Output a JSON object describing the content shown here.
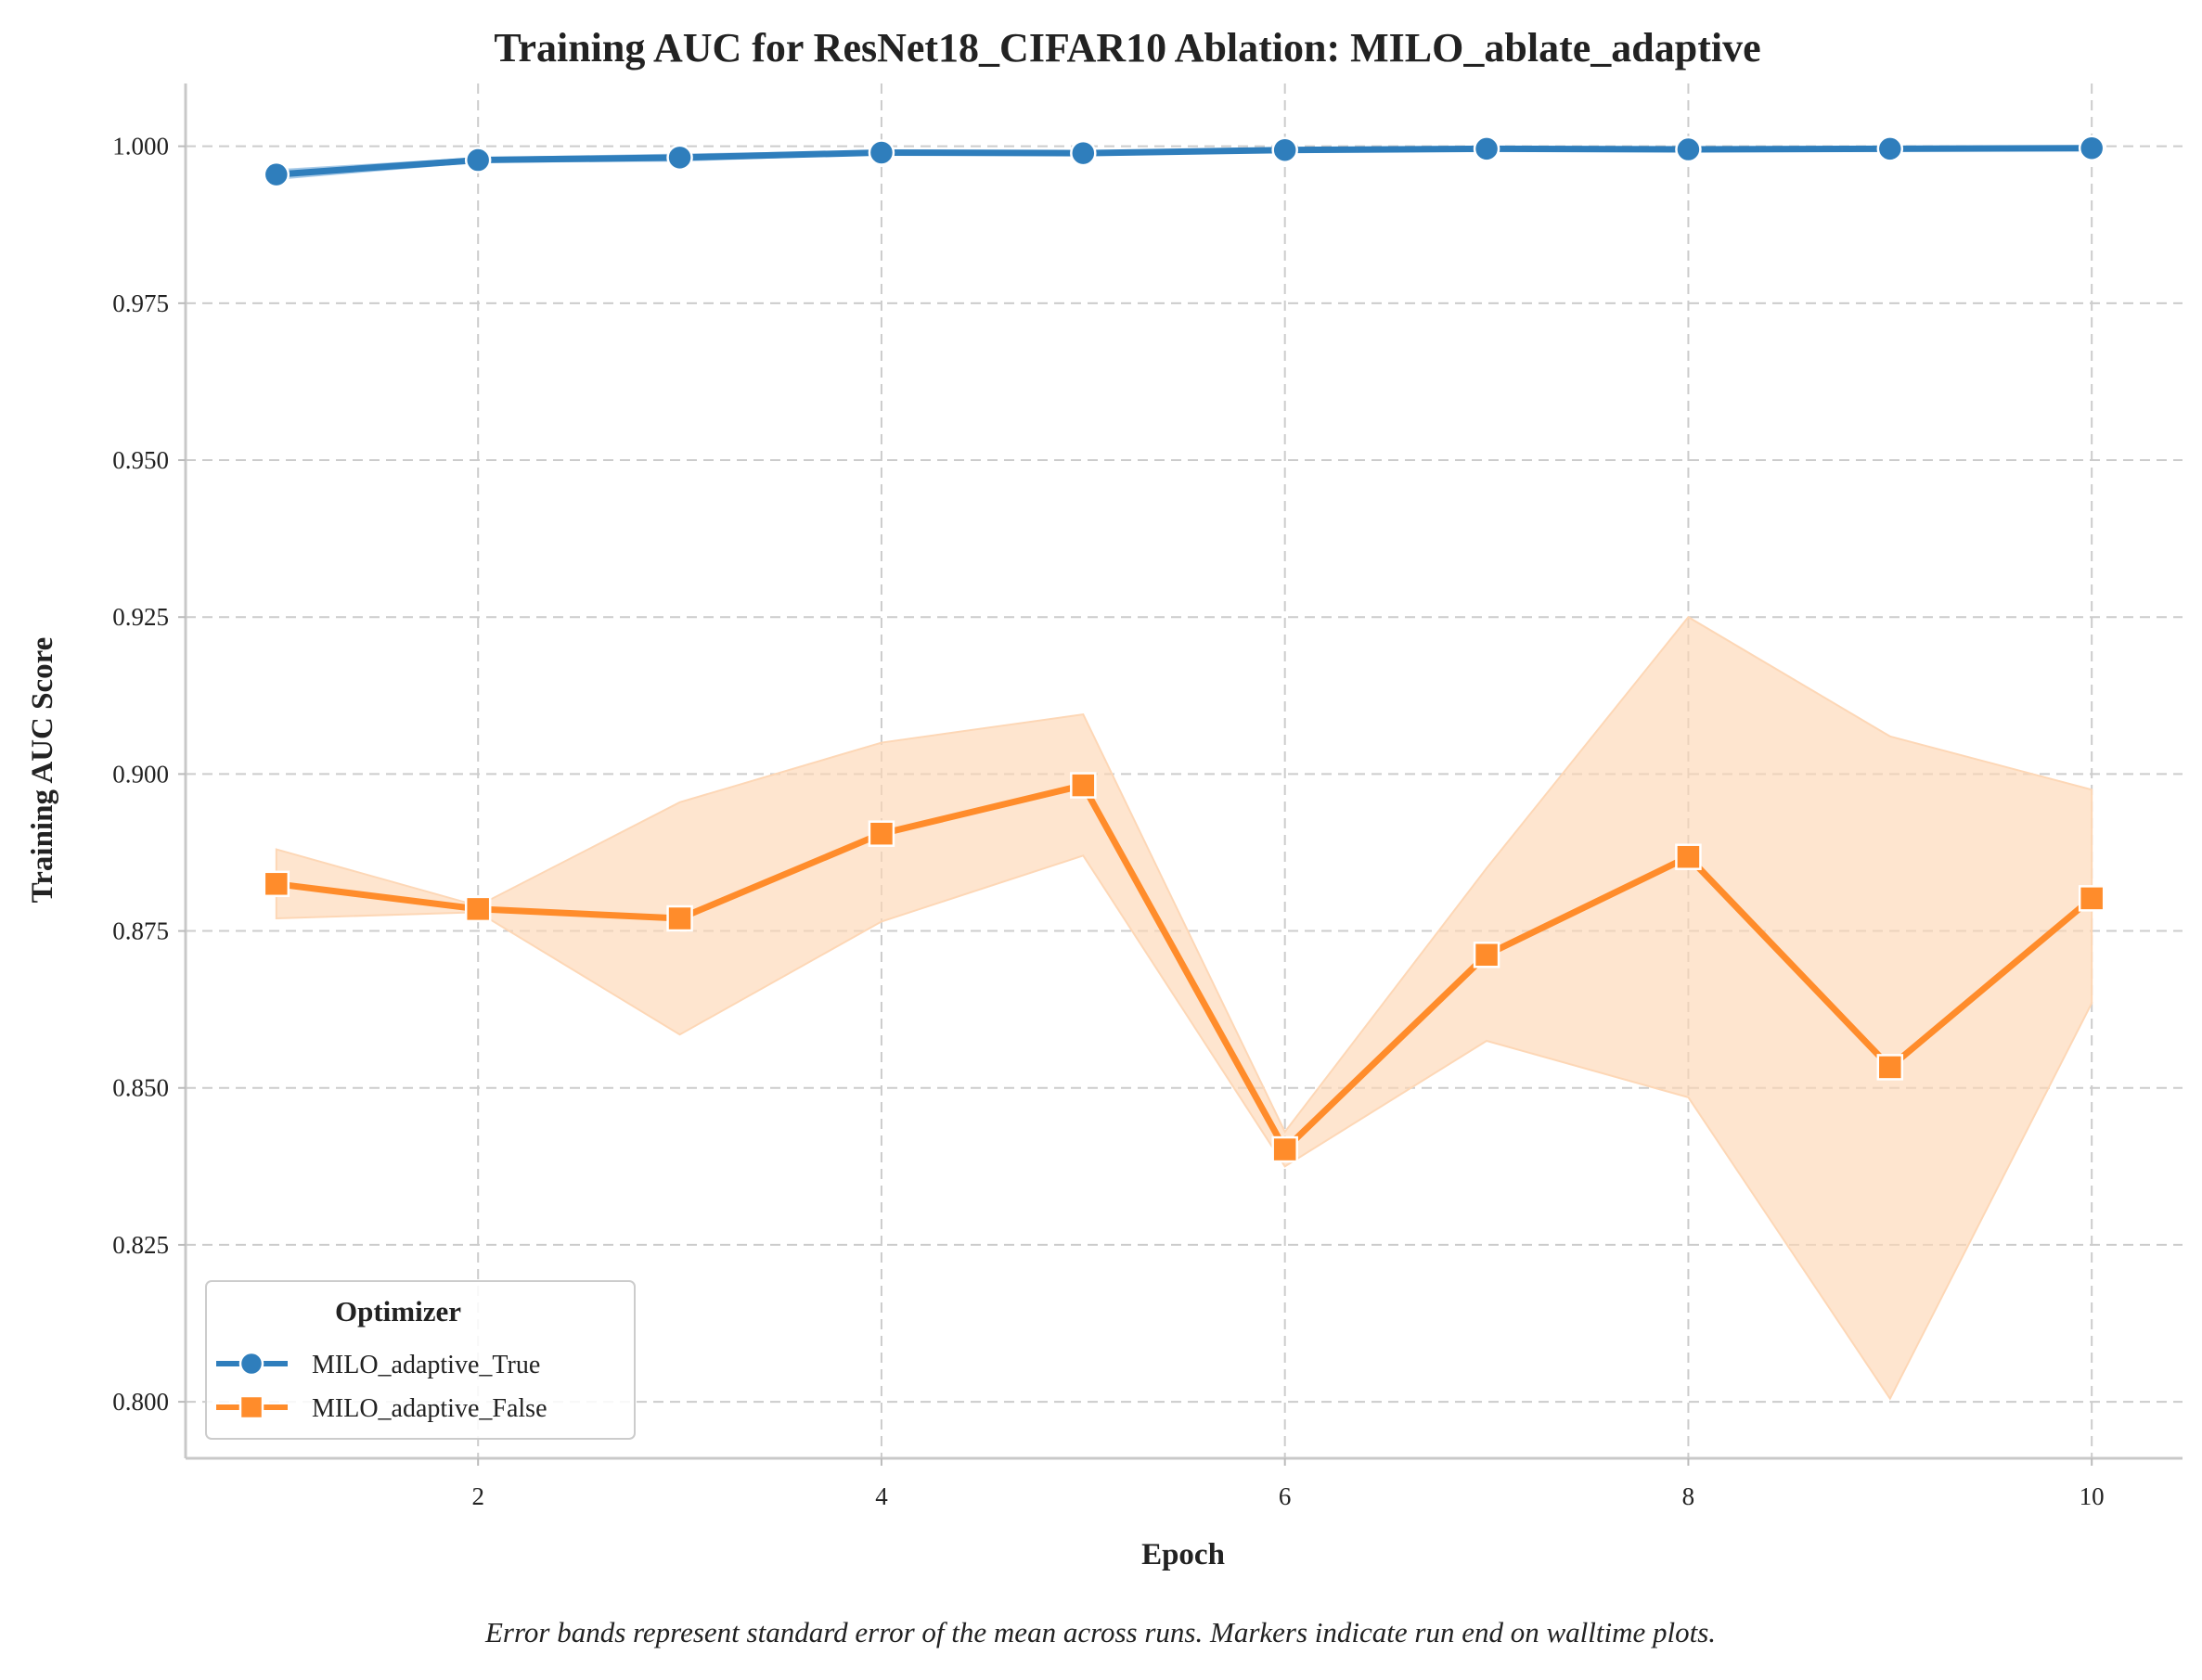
{
  "chart_data": {
    "type": "line",
    "title": "Training AUC for ResNet18_CIFAR10 Ablation: MILO_ablate_adaptive",
    "xlabel": "Epoch",
    "ylabel": "Training AUC Score",
    "xlim": [
      0.55,
      10.45
    ],
    "ylim": [
      0.791,
      1.01
    ],
    "xticks": [
      2,
      4,
      6,
      8,
      10
    ],
    "xtick_labels": [
      "2",
      "4",
      "6",
      "8",
      "10"
    ],
    "yticks": [
      0.8,
      0.825,
      0.85,
      0.875,
      0.9,
      0.925,
      0.95,
      0.975,
      1.0
    ],
    "ytick_labels": [
      "0.800",
      "0.825",
      "0.850",
      "0.875",
      "0.900",
      "0.925",
      "0.950",
      "0.975",
      "1.000"
    ],
    "grid": true,
    "legend": {
      "title": "Optimizer",
      "position": "bottom-left"
    },
    "caption": "Error bands represent standard error of the mean across runs. Markers indicate run end on walltime plots.",
    "x": [
      1,
      2,
      3,
      4,
      5,
      6,
      7,
      8,
      9,
      10
    ],
    "series": [
      {
        "name": "MILO_adaptive_True",
        "color": "#2f7ebc",
        "band_color": "#a9cbe8",
        "marker": "circle",
        "values": [
          0.9955,
          0.9978,
          0.9982,
          0.999,
          0.9989,
          0.9994,
          0.9996,
          0.9995,
          0.9996,
          0.9997
        ],
        "lower": [
          0.9948,
          0.9975,
          0.9977,
          0.9988,
          0.9987,
          0.9993,
          0.9995,
          0.9994,
          0.9995,
          0.9996
        ],
        "upper": [
          0.9962,
          0.9981,
          0.9987,
          0.9992,
          0.9991,
          0.9995,
          0.9997,
          0.9996,
          0.9997,
          0.9998
        ]
      },
      {
        "name": "MILO_adaptive_False",
        "color": "#ff8c2b",
        "band_color": "#fdd7b6",
        "marker": "square",
        "values": [
          0.8825,
          0.8785,
          0.877,
          0.8905,
          0.8982,
          0.8402,
          0.8712,
          0.8868,
          0.8533,
          0.8802
        ],
        "lower": [
          0.877,
          0.878,
          0.8585,
          0.8765,
          0.887,
          0.8375,
          0.8575,
          0.8485,
          0.8005,
          0.8635
        ],
        "upper": [
          0.888,
          0.879,
          0.8955,
          0.905,
          0.9095,
          0.843,
          0.885,
          0.925,
          0.906,
          0.8975
        ]
      }
    ]
  }
}
